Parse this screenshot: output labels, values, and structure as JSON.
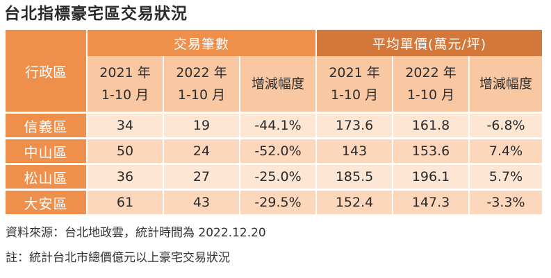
{
  "title": "台北指標豪宅區交易狀況",
  "table": {
    "corner_label": "行政區",
    "group1_label": "交易筆數",
    "group2_label": "平均單價(萬元/坪)",
    "sub_headers": {
      "tx_2021": "2021 年\n1-10 月",
      "tx_2022": "2022 年\n1-10 月",
      "tx_change": "增減幅度",
      "price_2021": "2021 年\n1-10 月",
      "price_2022": "2022 年\n1-10 月",
      "price_change": "增減幅度"
    },
    "rows": [
      {
        "district": "信義區",
        "tx_2021": "34",
        "tx_2022": "19",
        "tx_change": "-44.1%",
        "price_2021": "173.6",
        "price_2022": "161.8",
        "price_change": "-6.8%"
      },
      {
        "district": "中山區",
        "tx_2021": "50",
        "tx_2022": "24",
        "tx_change": "-52.0%",
        "price_2021": "143",
        "price_2022": "153.6",
        "price_change": "7.4%"
      },
      {
        "district": "松山區",
        "tx_2021": "36",
        "tx_2022": "27",
        "tx_change": "-25.0%",
        "price_2021": "185.5",
        "price_2022": "196.1",
        "price_change": "5.7%"
      },
      {
        "district": "大安區",
        "tx_2021": "61",
        "tx_2022": "43",
        "tx_change": "-29.5%",
        "price_2021": "152.4",
        "price_2022": "147.3",
        "price_change": "-3.3%"
      }
    ]
  },
  "source_note": "資料來源：台北地政雲，統計時間為 2022.12.20",
  "footnote": "註：統計台北市總價億元以上豪宅交易狀況",
  "colors": {
    "header_orange": "#ee8f4c",
    "header_dark_orange": "#d3773a",
    "subheader_peach": "#f9c8a3",
    "row_light": "#fde6d4",
    "row_mid": "#fdd7bb"
  }
}
